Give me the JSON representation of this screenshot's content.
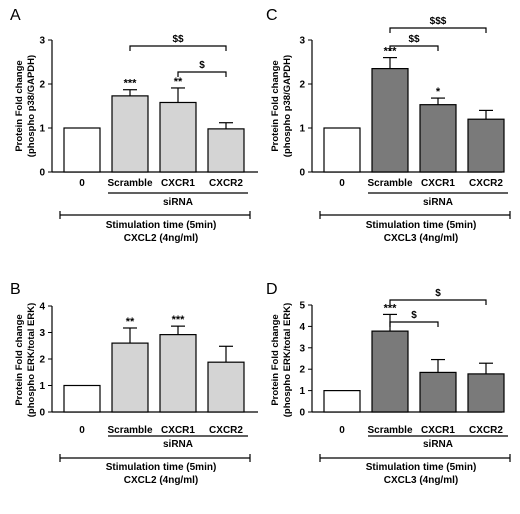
{
  "chart_data": [
    {
      "type": "bar",
      "panel_label": "A",
      "ylabel": "Protein Fold change (phospho p38/GAPDH)",
      "ylim": [
        0,
        3
      ],
      "yticks": [
        "0",
        "1",
        "2",
        "3"
      ],
      "categories": [
        "0",
        "Scramble",
        "CXCR1",
        "CXCR2"
      ],
      "values": [
        1.0,
        1.73,
        1.58,
        0.98
      ],
      "errors": [
        0,
        0.14,
        0.33,
        0.14
      ],
      "significance": [
        "",
        "***",
        "**",
        ""
      ],
      "bar_colors": [
        "#ffffff",
        "#d4d4d4",
        "#d4d4d4",
        "#d4d4d4"
      ],
      "brackets": [
        {
          "from": 1,
          "to": 3,
          "label": "$$"
        },
        {
          "from": 2,
          "to": 3,
          "label": "$"
        }
      ],
      "group_label": "siRNA",
      "stimulation_label": "Stimulation time (5min)",
      "ligand_label": "CXCL2 (4ng/ml)"
    },
    {
      "type": "bar",
      "panel_label": "C",
      "ylabel": "Protein Fold change (phospho p38/GAPDH)",
      "ylim": [
        0,
        3
      ],
      "yticks": [
        "0",
        "1",
        "2",
        "3"
      ],
      "categories": [
        "0",
        "Scramble",
        "CXCR1",
        "CXCR2"
      ],
      "values": [
        1.0,
        2.35,
        1.53,
        1.2
      ],
      "errors": [
        0,
        0.25,
        0.15,
        0.2
      ],
      "significance": [
        "",
        "***",
        "*",
        ""
      ],
      "bar_colors": [
        "#ffffff",
        "#7a7a7a",
        "#7a7a7a",
        "#7a7a7a"
      ],
      "brackets": [
        {
          "from": 1,
          "to": 2,
          "label": "$$"
        },
        {
          "from": 1,
          "to": 3,
          "label": "$$$"
        }
      ],
      "group_label": "siRNA",
      "stimulation_label": "Stimulation time (5min)",
      "ligand_label": "CXCL3 (4ng/ml)"
    },
    {
      "type": "bar",
      "panel_label": "B",
      "ylabel": "Protein Fold change (phospho ERK/total ERK)",
      "ylim": [
        0,
        4
      ],
      "yticks": [
        "0",
        "1",
        "2",
        "3",
        "4"
      ],
      "categories": [
        "0",
        "Scramble",
        "CXCR1",
        "CXCR2"
      ],
      "values": [
        1.0,
        2.6,
        2.92,
        1.88
      ],
      "errors": [
        0,
        0.57,
        0.32,
        0.6
      ],
      "significance": [
        "",
        "**",
        "***",
        ""
      ],
      "bar_colors": [
        "#ffffff",
        "#d4d4d4",
        "#d4d4d4",
        "#d4d4d4"
      ],
      "brackets": [],
      "group_label": "siRNA",
      "stimulation_label": "Stimulation time (5min)",
      "ligand_label": "CXCL2 (4ng/ml)"
    },
    {
      "type": "bar",
      "panel_label": "D",
      "ylabel": "Protein Fold change (phospho ERK/total ERK)",
      "ylim": [
        0,
        5
      ],
      "yticks": [
        "0",
        "1",
        "2",
        "3",
        "4",
        "5"
      ],
      "categories": [
        "0",
        "Scramble",
        "CXCR1",
        "CXCR2"
      ],
      "values": [
        1.0,
        3.78,
        1.85,
        1.78
      ],
      "errors": [
        0,
        0.78,
        0.6,
        0.5
      ],
      "significance": [
        "",
        "***",
        "",
        ""
      ],
      "bar_colors": [
        "#ffffff",
        "#7a7a7a",
        "#7a7a7a",
        "#7a7a7a"
      ],
      "brackets": [
        {
          "from": 1,
          "to": 2,
          "label": "$"
        },
        {
          "from": 1,
          "to": 3,
          "label": "$"
        }
      ],
      "group_label": "siRNA",
      "stimulation_label": "Stimulation time (5min)",
      "ligand_label": "CXCL3 (4ng/ml)"
    }
  ]
}
